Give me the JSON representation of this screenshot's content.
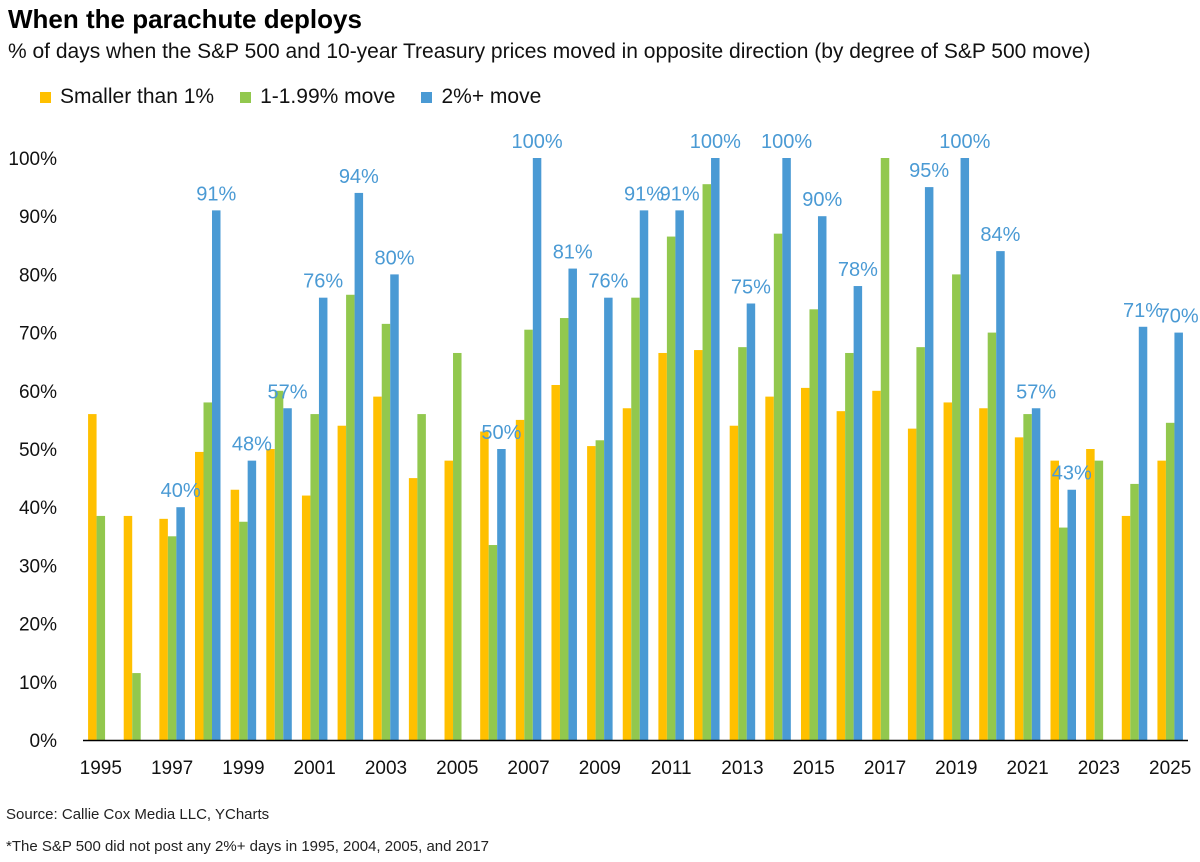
{
  "chart_data": {
    "type": "bar",
    "title": "When the parachute deploys",
    "subtitle": "% of days when the S&P 500 and 10-year Treasury prices moved in opposite direction (by degree of S&P 500 move)",
    "ylim": [
      0,
      100
    ],
    "y_ticks": [
      "0%",
      "10%",
      "20%",
      "30%",
      "40%",
      "50%",
      "60%",
      "70%",
      "80%",
      "90%",
      "100%"
    ],
    "grid": false,
    "legend_position": "top-left",
    "categories": [
      "1995",
      "1996",
      "1997",
      "1998",
      "1999",
      "2000",
      "2001",
      "2002",
      "2003",
      "2004",
      "2005",
      "2006",
      "2007",
      "2008",
      "2009",
      "2010",
      "2011",
      "2012",
      "2013",
      "2014",
      "2015",
      "2016",
      "2017",
      "2018",
      "2019",
      "2020",
      "2021",
      "2022",
      "2023",
      "2024",
      "2025"
    ],
    "x_tick_labels": [
      "1995",
      "",
      "1997",
      "",
      "1999",
      "",
      "2001",
      "",
      "2003",
      "",
      "2005",
      "",
      "2007",
      "",
      "2009",
      "",
      "2011",
      "",
      "2013",
      "",
      "2015",
      "",
      "2017",
      "",
      "2019",
      "",
      "2021",
      "",
      "2023",
      "",
      "2025"
    ],
    "series": [
      {
        "name": "Smaller than 1%",
        "color": "#FFC000",
        "values": [
          56,
          38.5,
          38,
          49.5,
          43,
          50,
          42,
          54,
          59,
          45,
          48,
          53,
          55,
          61,
          50.5,
          57,
          66.5,
          67,
          54,
          59,
          60.5,
          56.5,
          60,
          53.5,
          58,
          57,
          52,
          48,
          50,
          38.5,
          48
        ]
      },
      {
        "name": "1-1.99% move",
        "color": "#92C84E",
        "values": [
          38.5,
          11.5,
          35,
          58,
          37.5,
          60,
          56,
          76.5,
          71.5,
          56,
          66.5,
          33.5,
          70.5,
          72.5,
          51.5,
          76,
          86.5,
          95.5,
          67.5,
          87,
          74,
          66.5,
          100,
          67.5,
          80,
          70,
          56,
          36.5,
          48,
          44,
          54.5
        ]
      },
      {
        "name": "2%+ move",
        "color": "#4A9AD4",
        "values": [
          null,
          null,
          40,
          91,
          48,
          57,
          76,
          94,
          80,
          null,
          null,
          50,
          100,
          81,
          76,
          91,
          91,
          100,
          75,
          100,
          90,
          78,
          null,
          95,
          100,
          84,
          57,
          43,
          null,
          71,
          70
        ],
        "data_labels": [
          "",
          "",
          "40%",
          "91%",
          "48%",
          "57%",
          "76%",
          "94%",
          "80%",
          "",
          "",
          "50%",
          "100%",
          "81%",
          "76%",
          "91%",
          "91%",
          "100%",
          "75%",
          "100%",
          "90%",
          "78%",
          "",
          "95%",
          "100%",
          "84%",
          "57%",
          "43%",
          "",
          "71%",
          "70%"
        ]
      }
    ]
  },
  "source": "Source: Callie Cox Media LLC, YCharts",
  "footnote": "*The S&P 500 did not post any 2%+ days in 1995, 2004, 2005, and 2017"
}
